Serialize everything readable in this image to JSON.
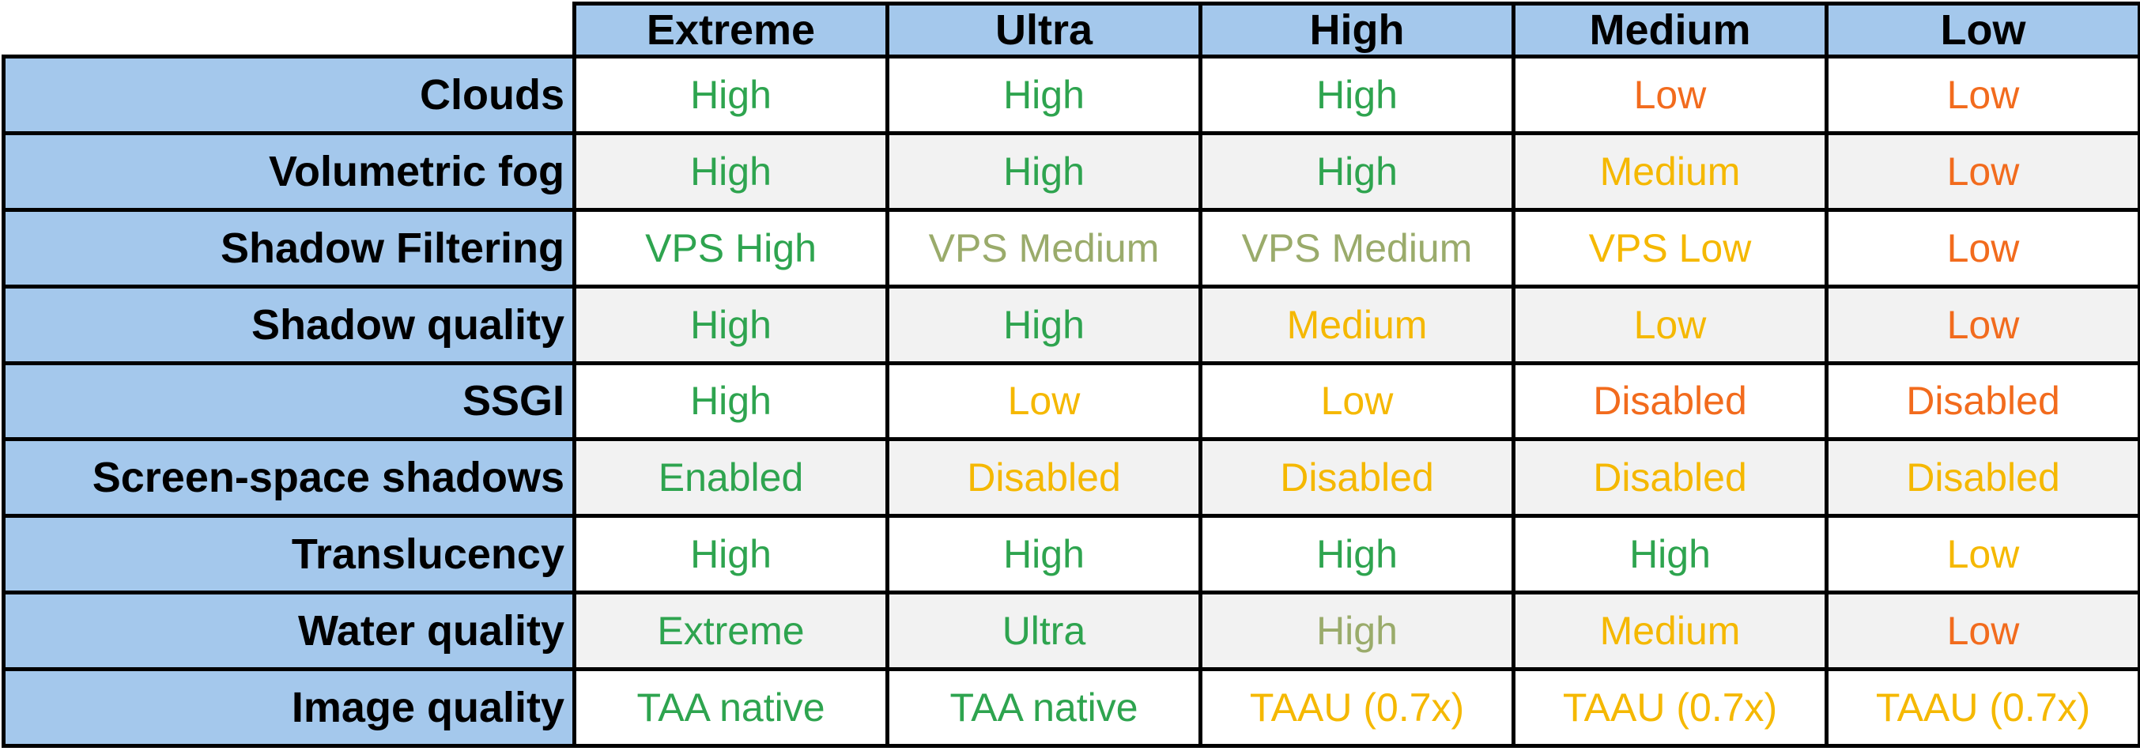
{
  "table": {
    "columns": [
      "Extreme",
      "Ultra",
      "High",
      "Medium",
      "Low"
    ],
    "rows": [
      {
        "label": "Clouds",
        "cells": [
          {
            "text": "High",
            "color": "#2ea44f"
          },
          {
            "text": "High",
            "color": "#2ea44f"
          },
          {
            "text": "High",
            "color": "#2ea44f"
          },
          {
            "text": "Low",
            "color": "#f26b1d"
          },
          {
            "text": "Low",
            "color": "#f26b1d"
          }
        ]
      },
      {
        "label": "Volumetric fog",
        "cells": [
          {
            "text": "High",
            "color": "#2ea44f"
          },
          {
            "text": "High",
            "color": "#2ea44f"
          },
          {
            "text": "High",
            "color": "#2ea44f"
          },
          {
            "text": "Medium",
            "color": "#f5b800"
          },
          {
            "text": "Low",
            "color": "#f26b1d"
          }
        ]
      },
      {
        "label": "Shadow Filtering",
        "cells": [
          {
            "text": "VPS High",
            "color": "#2ea44f"
          },
          {
            "text": "VPS Medium",
            "color": "#9aab6b"
          },
          {
            "text": "VPS Medium",
            "color": "#9aab6b"
          },
          {
            "text": "VPS Low",
            "color": "#f5b800"
          },
          {
            "text": "Low",
            "color": "#f26b1d"
          }
        ]
      },
      {
        "label": "Shadow quality",
        "cells": [
          {
            "text": "High",
            "color": "#2ea44f"
          },
          {
            "text": "High",
            "color": "#2ea44f"
          },
          {
            "text": "Medium",
            "color": "#f5b800"
          },
          {
            "text": "Low",
            "color": "#f5b800"
          },
          {
            "text": "Low",
            "color": "#f26b1d"
          }
        ]
      },
      {
        "label": "SSGI",
        "cells": [
          {
            "text": "High",
            "color": "#2ea44f"
          },
          {
            "text": "Low",
            "color": "#f5b800"
          },
          {
            "text": "Low",
            "color": "#f5b800"
          },
          {
            "text": "Disabled",
            "color": "#f26b1d"
          },
          {
            "text": "Disabled",
            "color": "#f26b1d"
          }
        ]
      },
      {
        "label": "Screen-space shadows",
        "cells": [
          {
            "text": "Enabled",
            "color": "#2ea44f"
          },
          {
            "text": "Disabled",
            "color": "#f5b800"
          },
          {
            "text": "Disabled",
            "color": "#f5b800"
          },
          {
            "text": "Disabled",
            "color": "#f5b800"
          },
          {
            "text": "Disabled",
            "color": "#f5b800"
          }
        ]
      },
      {
        "label": "Translucency",
        "cells": [
          {
            "text": "High",
            "color": "#2ea44f"
          },
          {
            "text": "High",
            "color": "#2ea44f"
          },
          {
            "text": "High",
            "color": "#2ea44f"
          },
          {
            "text": "High",
            "color": "#2ea44f"
          },
          {
            "text": "Low",
            "color": "#f5b800"
          }
        ]
      },
      {
        "label": "Water quality",
        "cells": [
          {
            "text": "Extreme",
            "color": "#2ea44f"
          },
          {
            "text": "Ultra",
            "color": "#2ea44f"
          },
          {
            "text": "High",
            "color": "#9aab6b"
          },
          {
            "text": "Medium",
            "color": "#f5b800"
          },
          {
            "text": "Low",
            "color": "#f26b1d"
          }
        ]
      },
      {
        "label": "Image quality",
        "cells": [
          {
            "text": "TAA native",
            "color": "#2ea44f"
          },
          {
            "text": "TAA native",
            "color": "#2ea44f"
          },
          {
            "text": "TAAU (0.7x)",
            "color": "#f5b800"
          },
          {
            "text": "TAAU (0.7x)",
            "color": "#f5b800"
          },
          {
            "text": "TAAU (0.7x)",
            "color": "#f5b800"
          }
        ]
      }
    ]
  }
}
